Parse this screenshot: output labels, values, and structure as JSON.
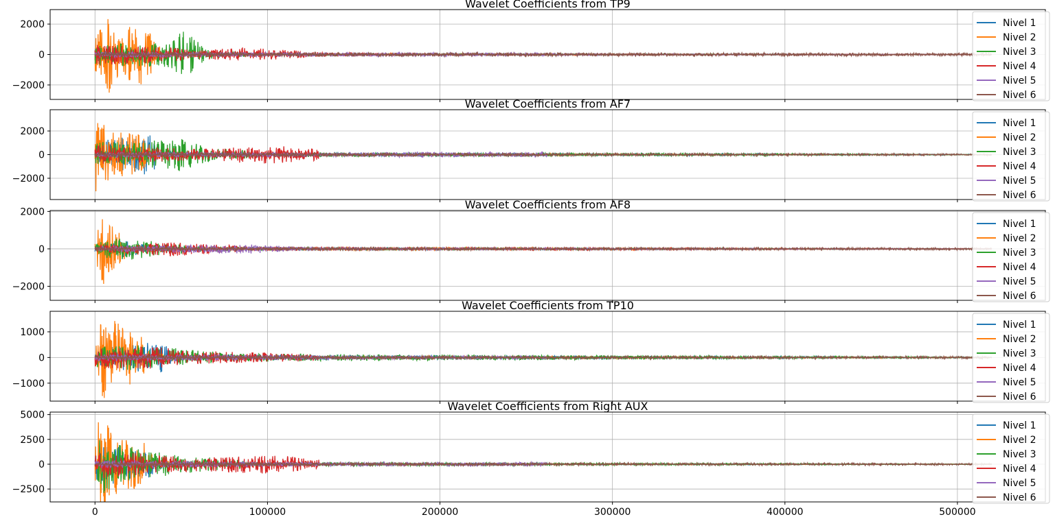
{
  "chart_data": [
    {
      "type": "line",
      "title": "Wavelet Coefficients from TP9",
      "xlim": [
        -26000,
        551000
      ],
      "ylim": [
        -2950,
        2950
      ],
      "yticks": [
        -2000,
        0,
        2000
      ],
      "ytick_labels": [
        "−2000",
        "0",
        "2000"
      ],
      "grid": true,
      "legend": "right",
      "series": [
        {
          "name": "Nivel 1",
          "color": "#1f77b4",
          "span": [
            0,
            520000
          ],
          "envelope": [
            [
              0,
              950
            ],
            [
              5000,
              700
            ],
            [
              10000,
              400
            ],
            [
              25000,
              300
            ],
            [
              40000,
              120
            ],
            [
              80000,
              40
            ],
            [
              520000,
              15
            ]
          ]
        },
        {
          "name": "Nivel 2",
          "color": "#ff7f0e",
          "span": [
            0,
            520000
          ],
          "envelope": [
            [
              0,
              1200
            ],
            [
              4000,
              1900
            ],
            [
              8000,
              2600
            ],
            [
              14000,
              1500
            ],
            [
              28000,
              2300
            ],
            [
              40000,
              200
            ],
            [
              80000,
              60
            ],
            [
              520000,
              15
            ]
          ]
        },
        {
          "name": "Nivel 3",
          "color": "#2ca02c",
          "span": [
            0,
            520000
          ],
          "envelope": [
            [
              0,
              700
            ],
            [
              20000,
              800
            ],
            [
              40000,
              800
            ],
            [
              52000,
              1600
            ],
            [
              65000,
              300
            ],
            [
              100000,
              60
            ],
            [
              520000,
              15
            ]
          ]
        },
        {
          "name": "Nivel 4",
          "color": "#d62728",
          "span": [
            0,
            520000
          ],
          "envelope": [
            [
              0,
              700
            ],
            [
              30000,
              600
            ],
            [
              60000,
              300
            ],
            [
              90000,
              450
            ],
            [
              130000,
              150
            ],
            [
              200000,
              40
            ],
            [
              520000,
              15
            ]
          ]
        },
        {
          "name": "Nivel 5",
          "color": "#9467bd",
          "span": [
            0,
            520000
          ],
          "envelope": [
            [
              0,
              200
            ],
            [
              100000,
              150
            ],
            [
              220000,
              120
            ],
            [
              300000,
              40
            ],
            [
              520000,
              15
            ]
          ]
        },
        {
          "name": "Nivel 6",
          "color": "#8c564b",
          "span": [
            0,
            520000
          ],
          "envelope": [
            [
              0,
              150
            ],
            [
              520000,
              90
            ]
          ]
        }
      ]
    },
    {
      "type": "line",
      "title": "Wavelet Coefficients from AF7",
      "xlim": [
        -26000,
        551000
      ],
      "ylim": [
        -3800,
        3800
      ],
      "yticks": [
        -2000,
        0,
        2000
      ],
      "ytick_labels": [
        "−2000",
        "0",
        "2000"
      ],
      "grid": true,
      "legend": "right",
      "series": [
        {
          "name": "Nivel 1",
          "color": "#1f77b4",
          "span": [
            0,
            520000
          ],
          "envelope": [
            [
              0,
              1200
            ],
            [
              20000,
              1500
            ],
            [
              30000,
              2000
            ],
            [
              40000,
              400
            ],
            [
              60000,
              150
            ],
            [
              520000,
              30
            ]
          ]
        },
        {
          "name": "Nivel 2",
          "color": "#ff7f0e",
          "span": [
            0,
            520000
          ],
          "envelope": [
            [
              0,
              3400
            ],
            [
              5000,
              3100
            ],
            [
              10000,
              2000
            ],
            [
              25000,
              1800
            ],
            [
              35000,
              400
            ],
            [
              60000,
              100
            ],
            [
              520000,
              20
            ]
          ]
        },
        {
          "name": "Nivel 3",
          "color": "#2ca02c",
          "span": [
            0,
            520000
          ],
          "envelope": [
            [
              0,
              1200
            ],
            [
              20000,
              1000
            ],
            [
              50000,
              1400
            ],
            [
              65000,
              600
            ],
            [
              100000,
              200
            ],
            [
              520000,
              20
            ]
          ]
        },
        {
          "name": "Nivel 4",
          "color": "#d62728",
          "span": [
            0,
            130000
          ],
          "envelope": [
            [
              0,
              800
            ],
            [
              60000,
              500
            ],
            [
              100000,
              800
            ],
            [
              130000,
              500
            ]
          ]
        },
        {
          "name": "Nivel 5",
          "color": "#9467bd",
          "span": [
            0,
            262000
          ],
          "envelope": [
            [
              0,
              250
            ],
            [
              130000,
              150
            ],
            [
              190000,
              250
            ],
            [
              262000,
              200
            ]
          ]
        },
        {
          "name": "Nivel 6",
          "color": "#8c564b",
          "span": [
            0,
            520000
          ],
          "envelope": [
            [
              0,
              200
            ],
            [
              520000,
              60
            ]
          ]
        }
      ]
    },
    {
      "type": "line",
      "title": "Wavelet Coefficients from AF8",
      "xlim": [
        -26000,
        551000
      ],
      "ylim": [
        -2750,
        2050
      ],
      "yticks": [
        -2000,
        0,
        2000
      ],
      "ytick_labels": [
        "−2000",
        "0",
        "2000"
      ],
      "grid": true,
      "legend": "right",
      "series": [
        {
          "name": "Nivel 1",
          "color": "#1f77b4",
          "span": [
            0,
            520000
          ],
          "envelope": [
            [
              0,
              300
            ],
            [
              15000,
              500
            ],
            [
              30000,
              200
            ],
            [
              60000,
              60
            ],
            [
              520000,
              15
            ]
          ]
        },
        {
          "name": "Nivel 2",
          "color": "#ff7f0e",
          "span": [
            0,
            520000
          ],
          "envelope": [
            [
              0,
              400
            ],
            [
              4000,
              2500
            ],
            [
              8000,
              1300
            ],
            [
              12000,
              1100
            ],
            [
              20000,
              300
            ],
            [
              50000,
              80
            ],
            [
              520000,
              15
            ]
          ]
        },
        {
          "name": "Nivel 3",
          "color": "#2ca02c",
          "span": [
            0,
            520000
          ],
          "envelope": [
            [
              0,
              300
            ],
            [
              15000,
              700
            ],
            [
              40000,
              300
            ],
            [
              65000,
              150
            ],
            [
              100000,
              60
            ],
            [
              520000,
              15
            ]
          ]
        },
        {
          "name": "Nivel 4",
          "color": "#d62728",
          "span": [
            0,
            520000
          ],
          "envelope": [
            [
              0,
              200
            ],
            [
              45000,
              400
            ],
            [
              90000,
              120
            ],
            [
              130000,
              80
            ],
            [
              520000,
              15
            ]
          ]
        },
        {
          "name": "Nivel 5",
          "color": "#9467bd",
          "span": [
            0,
            520000
          ],
          "envelope": [
            [
              0,
              150
            ],
            [
              90000,
              250
            ],
            [
              130000,
              60
            ],
            [
              520000,
              15
            ]
          ]
        },
        {
          "name": "Nivel 6",
          "color": "#8c564b",
          "span": [
            0,
            520000
          ],
          "envelope": [
            [
              0,
              100
            ],
            [
              520000,
              50
            ]
          ]
        }
      ]
    },
    {
      "type": "line",
      "title": "Wavelet Coefficients from TP10",
      "xlim": [
        -26000,
        551000
      ],
      "ylim": [
        -1700,
        1800
      ],
      "yticks": [
        -1000,
        0,
        1000
      ],
      "ytick_labels": [
        "−1000",
        "0",
        "1000"
      ],
      "grid": true,
      "legend": "right",
      "series": [
        {
          "name": "Nivel 1",
          "color": "#1f77b4",
          "span": [
            0,
            520000
          ],
          "envelope": [
            [
              0,
              300
            ],
            [
              15000,
              500
            ],
            [
              38000,
              600
            ],
            [
              50000,
              100
            ],
            [
              520000,
              15
            ]
          ]
        },
        {
          "name": "Nivel 2",
          "color": "#ff7f0e",
          "span": [
            0,
            520000
          ],
          "envelope": [
            [
              0,
              500
            ],
            [
              4000,
              1600
            ],
            [
              9000,
              1550
            ],
            [
              25000,
              950
            ],
            [
              35000,
              200
            ],
            [
              60000,
              60
            ],
            [
              520000,
              15
            ]
          ]
        },
        {
          "name": "Nivel 3",
          "color": "#2ca02c",
          "span": [
            0,
            520000
          ],
          "envelope": [
            [
              0,
              400
            ],
            [
              20000,
              500
            ],
            [
              50000,
              350
            ],
            [
              80000,
              150
            ],
            [
              520000,
              15
            ]
          ]
        },
        {
          "name": "Nivel 4",
          "color": "#d62728",
          "span": [
            0,
            130000
          ],
          "envelope": [
            [
              0,
              450
            ],
            [
              30000,
              450
            ],
            [
              60000,
              250
            ],
            [
              100000,
              200
            ],
            [
              130000,
              120
            ]
          ]
        },
        {
          "name": "Nivel 5",
          "color": "#9467bd",
          "span": [
            0,
            262000
          ],
          "envelope": [
            [
              0,
              150
            ],
            [
              130000,
              80
            ],
            [
              262000,
              60
            ]
          ]
        },
        {
          "name": "Nivel 6",
          "color": "#8c564b",
          "span": [
            0,
            520000
          ],
          "envelope": [
            [
              0,
              80
            ],
            [
              520000,
              40
            ]
          ]
        }
      ]
    },
    {
      "type": "line",
      "title": "Wavelet Coefficients from Right AUX",
      "xlim": [
        -26000,
        551000
      ],
      "ylim": [
        -3800,
        5250
      ],
      "yticks": [
        -2500,
        0,
        2500,
        5000
      ],
      "ytick_labels": [
        "−2500",
        "0",
        "2500",
        "5000"
      ],
      "grid": true,
      "legend": "right",
      "series": [
        {
          "name": "Nivel 1",
          "color": "#1f77b4",
          "span": [
            0,
            520000
          ],
          "envelope": [
            [
              0,
              1500
            ],
            [
              10000,
              2000
            ],
            [
              30000,
              1500
            ],
            [
              40000,
              300
            ],
            [
              60000,
              100
            ],
            [
              520000,
              20
            ]
          ]
        },
        {
          "name": "Nivel 2",
          "color": "#ff7f0e",
          "span": [
            0,
            520000
          ],
          "envelope": [
            [
              0,
              2000
            ],
            [
              2000,
              4800
            ],
            [
              6000,
              4400
            ],
            [
              15000,
              2500
            ],
            [
              28000,
              2500
            ],
            [
              35000,
              400
            ],
            [
              60000,
              100
            ],
            [
              520000,
              20
            ]
          ]
        },
        {
          "name": "Nivel 3",
          "color": "#2ca02c",
          "span": [
            0,
            520000
          ],
          "envelope": [
            [
              0,
              2000
            ],
            [
              5000,
              3000
            ],
            [
              15000,
              2000
            ],
            [
              40000,
              1200
            ],
            [
              65000,
              700
            ],
            [
              100000,
              200
            ],
            [
              520000,
              20
            ]
          ]
        },
        {
          "name": "Nivel 4",
          "color": "#d62728",
          "span": [
            0,
            130000
          ],
          "envelope": [
            [
              0,
              1500
            ],
            [
              20000,
              1200
            ],
            [
              60000,
              700
            ],
            [
              100000,
              1000
            ],
            [
              130000,
              500
            ]
          ]
        },
        {
          "name": "Nivel 5",
          "color": "#9467bd",
          "span": [
            0,
            262000
          ],
          "envelope": [
            [
              0,
              400
            ],
            [
              130000,
              200
            ],
            [
              262000,
              200
            ]
          ]
        },
        {
          "name": "Nivel 6",
          "color": "#8c564b",
          "span": [
            0,
            520000
          ],
          "envelope": [
            [
              0,
              200
            ],
            [
              520000,
              80
            ]
          ]
        }
      ]
    }
  ],
  "x_axis": {
    "ticks": [
      0,
      100000,
      200000,
      300000,
      400000,
      500000
    ],
    "tick_labels": [
      "0",
      "100000",
      "200000",
      "300000",
      "400000",
      "500000"
    ]
  },
  "colors": {
    "grid": "#b0b0b0",
    "legend_border": "#cccccc"
  }
}
